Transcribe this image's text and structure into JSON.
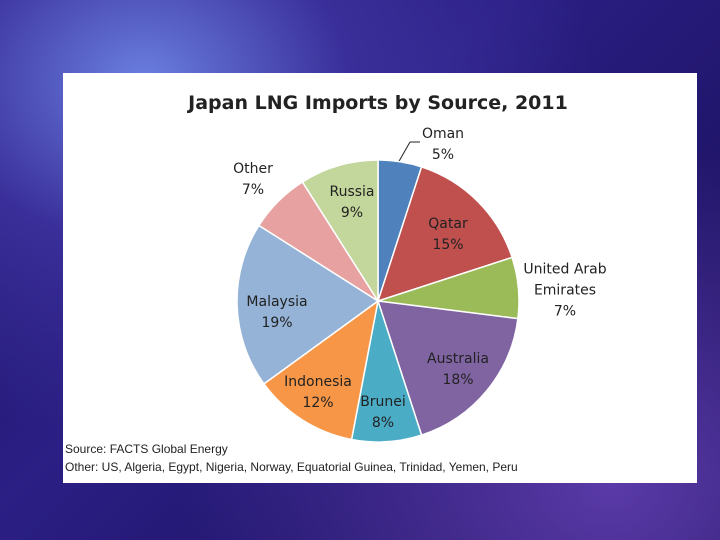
{
  "chart_data": {
    "type": "pie",
    "title": "Japan LNG Imports by Source, 2011",
    "categories": [
      "Oman",
      "Qatar",
      "United Arab Emirates",
      "Australia",
      "Brunei",
      "Indonesia",
      "Malaysia",
      "Other",
      "Russia"
    ],
    "values": [
      5,
      15,
      7,
      18,
      8,
      12,
      19,
      7,
      9
    ],
    "value_labels": [
      "5%",
      "15%",
      "7%",
      "18%",
      "8%",
      "12%",
      "19%",
      "7%",
      "9%"
    ],
    "colors": [
      "#4f81bd",
      "#c0504d",
      "#9bbb59",
      "#8064a2",
      "#4bacc6",
      "#f79646",
      "#95b3d7",
      "#e6a1a0",
      "#c3d69b"
    ],
    "source": "Source: FACTS Global Energy",
    "note": "Other: US, Algeria, Egypt, Nigeria, Norway, Equatorial Guinea, Trinidad, Yemen, Peru"
  }
}
